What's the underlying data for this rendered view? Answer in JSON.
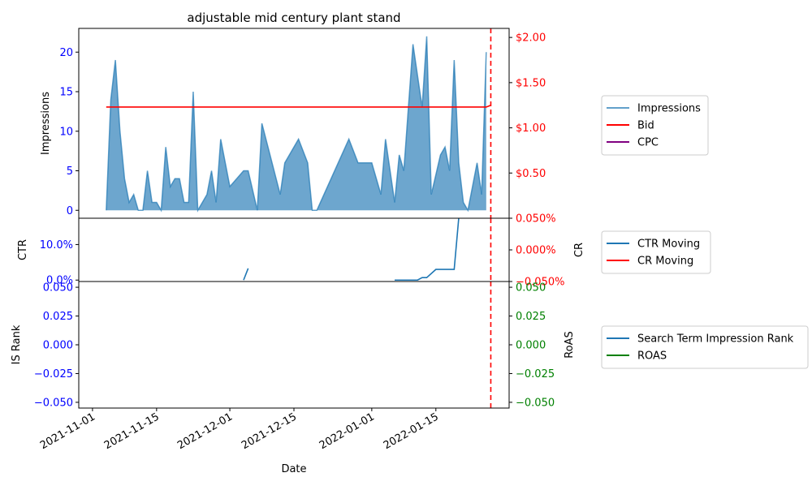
{
  "chart_data": [
    {
      "type": "area",
      "title": "adjustable mid century plant stand",
      "ylabel": "Impressions",
      "y2label": "",
      "ylim": [
        -1,
        23
      ],
      "y2lim": [
        0,
        2.1
      ],
      "yticks": [
        0,
        5,
        10,
        15,
        20
      ],
      "y2ticks": [
        {
          "v": 0.5,
          "label": "$0.50"
        },
        {
          "v": 1.0,
          "label": "$1.00"
        },
        {
          "v": 1.5,
          "label": "$1.50"
        },
        {
          "v": 2.0,
          "label": "$2.00"
        }
      ],
      "colors": {
        "impressions": "#1f77b4",
        "bid": "#ff0000",
        "cpc": "#800080",
        "left_ticks": "#0000ff",
        "right_ticks": "#ff0000"
      },
      "series": [
        {
          "name": "Impressions",
          "points": [
            [
              "2021-11-04",
              0
            ],
            [
              "2021-11-05",
              14
            ],
            [
              "2021-11-06",
              19
            ],
            [
              "2021-11-07",
              10
            ],
            [
              "2021-11-08",
              4
            ],
            [
              "2021-11-09",
              1
            ],
            [
              "2021-11-10",
              2
            ],
            [
              "2021-11-11",
              0
            ],
            [
              "2021-11-12",
              0
            ],
            [
              "2021-11-13",
              5
            ],
            [
              "2021-11-14",
              1
            ],
            [
              "2021-11-15",
              1
            ],
            [
              "2021-11-16",
              0
            ],
            [
              "2021-11-17",
              8
            ],
            [
              "2021-11-18",
              3
            ],
            [
              "2021-11-19",
              4
            ],
            [
              "2021-11-20",
              4
            ],
            [
              "2021-11-21",
              1
            ],
            [
              "2021-11-22",
              1
            ],
            [
              "2021-11-23",
              15
            ],
            [
              "2021-11-24",
              0
            ],
            [
              "2021-11-26",
              2
            ],
            [
              "2021-11-27",
              5
            ],
            [
              "2021-11-28",
              1
            ],
            [
              "2021-11-29",
              9
            ],
            [
              "2021-12-01",
              3
            ],
            [
              "2021-12-04",
              5
            ],
            [
              "2021-12-05",
              5
            ],
            [
              "2021-12-07",
              0
            ],
            [
              "2021-12-08",
              11
            ],
            [
              "2021-12-12",
              2
            ],
            [
              "2021-12-13",
              6
            ],
            [
              "2021-12-16",
              9
            ],
            [
              "2021-12-18",
              6
            ],
            [
              "2021-12-19",
              0
            ],
            [
              "2021-12-20",
              0
            ],
            [
              "2021-12-27",
              9
            ],
            [
              "2021-12-29",
              6
            ],
            [
              "2022-01-01",
              6
            ],
            [
              "2022-01-03",
              2
            ],
            [
              "2022-01-04",
              9
            ],
            [
              "2022-01-06",
              1
            ],
            [
              "2022-01-07",
              7
            ],
            [
              "2022-01-08",
              5
            ],
            [
              "2022-01-10",
              21
            ],
            [
              "2022-01-12",
              13
            ],
            [
              "2022-01-13",
              22
            ],
            [
              "2022-01-14",
              2
            ],
            [
              "2022-01-16",
              7
            ],
            [
              "2022-01-17",
              8
            ],
            [
              "2022-01-18",
              5
            ],
            [
              "2022-01-19",
              19
            ],
            [
              "2022-01-20",
              6
            ],
            [
              "2022-01-21",
              1
            ],
            [
              "2022-01-22",
              0
            ],
            [
              "2022-01-24",
              6
            ],
            [
              "2022-01-25",
              2
            ],
            [
              "2022-01-26",
              20
            ]
          ]
        },
        {
          "name": "Bid",
          "points": [
            [
              "2021-11-04",
              1.23
            ],
            [
              "2022-01-26",
              1.23
            ],
            [
              "2022-01-27",
              1.25
            ]
          ]
        },
        {
          "name": "CPC",
          "points": []
        }
      ],
      "vline": "2022-01-27"
    },
    {
      "type": "line",
      "ylabel": "CTR",
      "y2label": "CR",
      "ylim": [
        -0.004,
        0.174
      ],
      "y2lim": [
        -0.05,
        0.05
      ],
      "yticks": [
        {
          "v": 0,
          "label": "0.0%"
        },
        {
          "v": 0.1,
          "label": "10.0%"
        }
      ],
      "y2ticks": [
        {
          "v": -0.05,
          "label": "−0.050%"
        },
        {
          "v": 0.0,
          "label": "0.000%"
        },
        {
          "v": 0.05,
          "label": "0.050%"
        }
      ],
      "colors": {
        "ctr": "#1f77b4",
        "cr": "#ff0000",
        "left_ticks": "#0000ff",
        "right_ticks": "#ff0000"
      },
      "series": [
        {
          "name": "CTR Moving",
          "segments": [
            [
              [
                "2021-12-04",
                0.0
              ],
              [
                "2021-12-05",
                0.033
              ]
            ],
            [
              [
                "2022-01-06",
                0.0
              ],
              [
                "2022-01-11",
                0.0
              ],
              [
                "2022-01-12",
                0.007
              ],
              [
                "2022-01-13",
                0.007
              ],
              [
                "2022-01-15",
                0.03
              ],
              [
                "2022-01-19",
                0.03
              ],
              [
                "2022-01-20",
                0.175
              ]
            ]
          ]
        },
        {
          "name": "CR Moving",
          "segments": []
        }
      ],
      "vline": "2022-01-27"
    },
    {
      "type": "line",
      "xlabel": "Date",
      "ylabel": "IS Rank",
      "y2label": "RoAS",
      "ylim": [
        -0.055,
        0.055
      ],
      "y2lim": [
        -0.055,
        0.055
      ],
      "yticks": [
        {
          "v": -0.05,
          "label": "−0.050"
        },
        {
          "v": -0.025,
          "label": "−0.025"
        },
        {
          "v": 0,
          "label": "0.000"
        },
        {
          "v": 0.025,
          "label": "0.025"
        },
        {
          "v": 0.05,
          "label": "0.050"
        }
      ],
      "y2ticks": [
        {
          "v": -0.05,
          "label": "−0.050"
        },
        {
          "v": -0.025,
          "label": "−0.025"
        },
        {
          "v": 0,
          "label": "0.000"
        },
        {
          "v": 0.025,
          "label": "0.025"
        },
        {
          "v": 0.05,
          "label": "0.050"
        }
      ],
      "colors": {
        "rank": "#1f77b4",
        "roas": "#008000",
        "left_ticks": "#0000ff",
        "right_ticks": "#008000"
      },
      "series": [
        {
          "name": "Search Term Impression Rank",
          "points": []
        },
        {
          "name": "ROAS",
          "points": []
        }
      ],
      "vline": "2022-01-27"
    }
  ],
  "x_axis": {
    "start": "2021-10-29",
    "end": "2022-01-31",
    "ticks": [
      "2021-11-01",
      "2021-11-15",
      "2021-12-01",
      "2021-12-15",
      "2022-01-01",
      "2022-01-15"
    ]
  }
}
